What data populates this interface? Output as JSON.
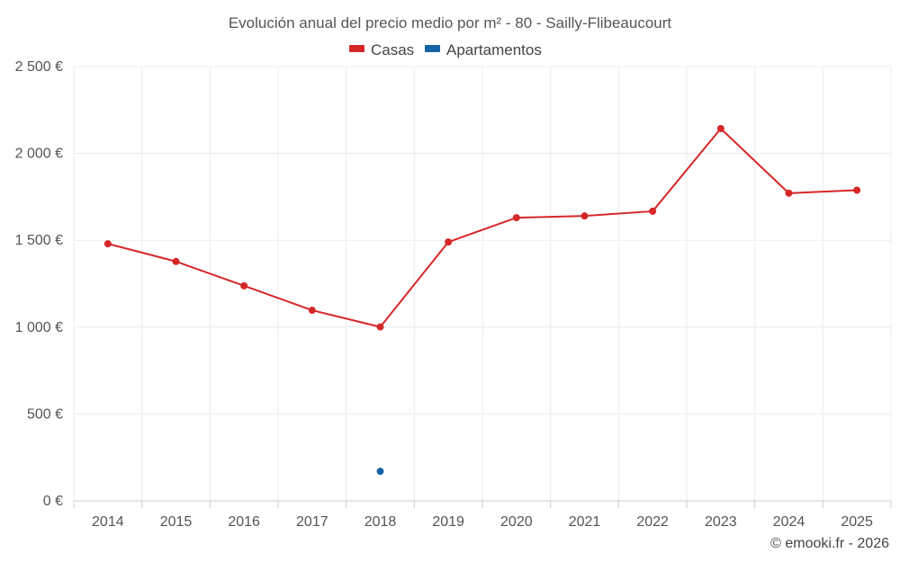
{
  "chart_data": {
    "type": "line",
    "title": "Evolución anual del precio medio por m² - 80 - Sailly-Flibeaucourt",
    "categories": [
      "2014",
      "2015",
      "2016",
      "2017",
      "2018",
      "2019",
      "2020",
      "2021",
      "2022",
      "2023",
      "2024",
      "2025"
    ],
    "series": [
      {
        "name": "Casas",
        "color": "#d62728",
        "values": [
          1480,
          1378,
          1238,
          1097,
          1001,
          1490,
          1630,
          1640,
          1667,
          2143,
          1771,
          1788
        ]
      },
      {
        "name": "Apartamentos",
        "color": "#1565a6",
        "values": [
          null,
          null,
          null,
          null,
          170,
          null,
          null,
          null,
          null,
          null,
          null,
          null
        ]
      }
    ],
    "ylim": [
      0,
      2500
    ],
    "yticks": [
      0,
      500,
      1000,
      1500,
      2000,
      2500
    ],
    "ytick_labels": [
      "0 €",
      "500 €",
      "1 000 €",
      "1 500 €",
      "2 000 €",
      "2 500 €"
    ],
    "legend_position": "top-center",
    "grid": true
  },
  "credit": "© emooki.fr - 2026"
}
